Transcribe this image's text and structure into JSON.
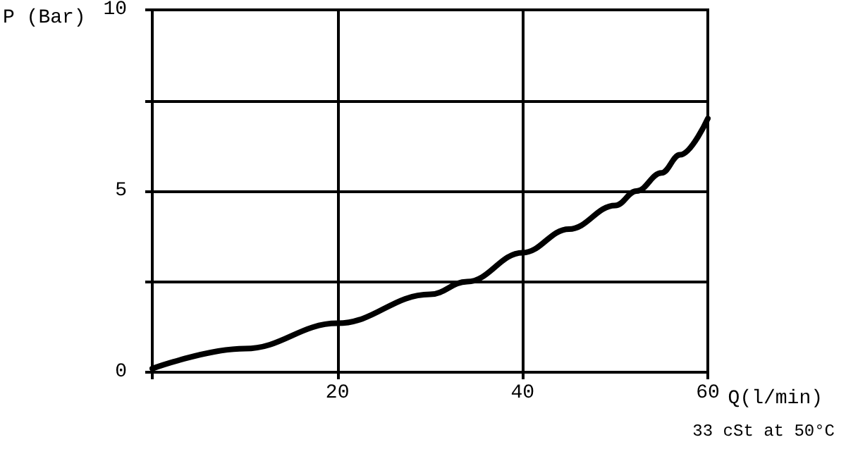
{
  "chart_data": {
    "type": "line",
    "xlabel": "Q(l/min)",
    "ylabel": "P (Bar)",
    "annotations": [
      "33 cSt at 50°C"
    ],
    "x": [
      0,
      10,
      20,
      30,
      34,
      40,
      45,
      50,
      52.3,
      55,
      57,
      60
    ],
    "series": [
      {
        "color": "#000000",
        "values": [
          0.1,
          0.65,
          1.35,
          2.15,
          2.5,
          3.3,
          3.95,
          4.6,
          5.0,
          5.5,
          6.0,
          7.0
        ]
      }
    ],
    "xlim": [
      0,
      60
    ],
    "xticks": [
      {
        "value": 0,
        "label": null
      },
      20,
      40,
      60
    ],
    "ylim": [
      0,
      10
    ],
    "yticks": [
      0,
      {
        "value": 2.5,
        "label": null
      },
      5,
      {
        "value": 7.5,
        "label": null
      },
      10
    ],
    "grid": true,
    "marker": "none",
    "line_style": "solid"
  }
}
